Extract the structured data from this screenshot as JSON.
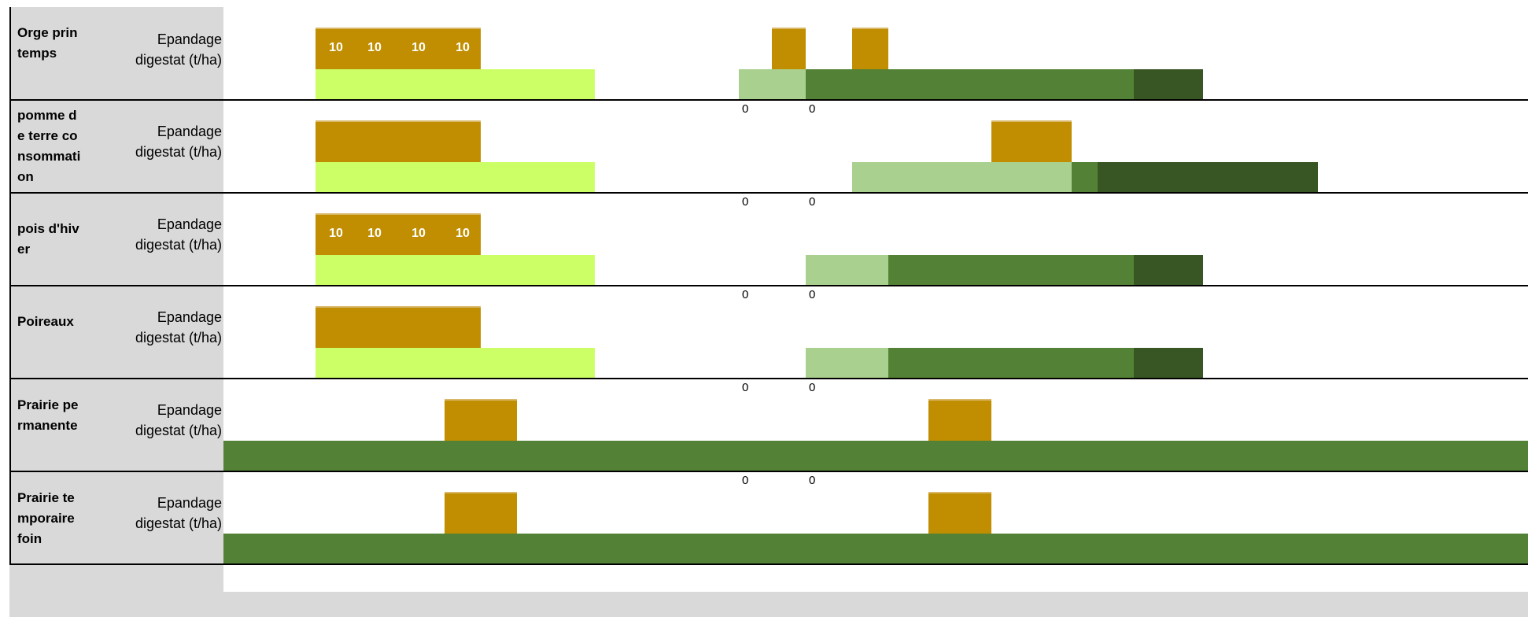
{
  "colors": {
    "digestat": "#c08e00",
    "lime": "#ccff66",
    "light_green": "#a9d08e",
    "mid_green": "#538135",
    "dark_green": "#375623",
    "label_bg": "#d9d9d9"
  },
  "rows": [
    {
      "crop": "Orge printemps",
      "label": "Epandage digestat (t/ha)",
      "values": [
        "10",
        "10",
        "10",
        "10"
      ]
    },
    {
      "crop": "pomme de terre consommation",
      "label": "Epandage digestat (t/ha)",
      "zeros": [
        "0",
        "0"
      ]
    },
    {
      "crop": "pois d'hiver",
      "label": "Epandage digestat (t/ha)",
      "zeros": [
        "0",
        "0"
      ],
      "values": [
        "10",
        "10",
        "10",
        "10"
      ]
    },
    {
      "crop": "Poireaux",
      "label": "Epandage digestat (t/ha)",
      "zeros": [
        "0",
        "0"
      ]
    },
    {
      "crop": "Prairie permanente",
      "label": "Epandage digestat (t/ha)",
      "zeros": [
        "0",
        "0"
      ]
    },
    {
      "crop": "Prairie temporaire foin",
      "label": "Epandage digestat (t/ha)",
      "zeros": [
        "0",
        "0"
      ]
    }
  ]
}
